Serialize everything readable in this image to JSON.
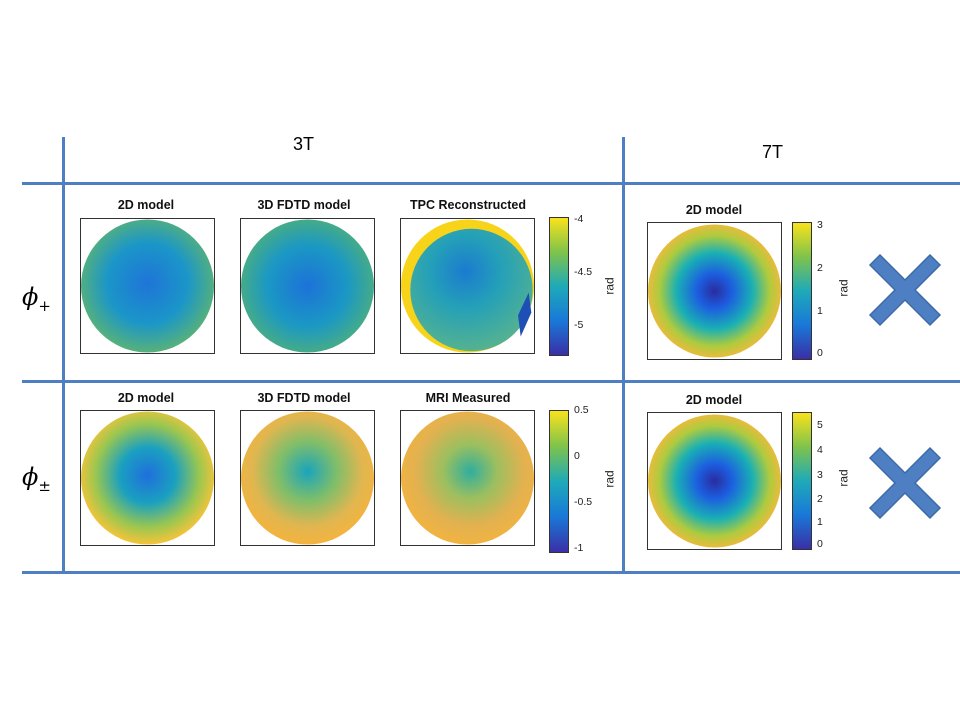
{
  "columns": {
    "col_3t": "3T",
    "col_7t": "7T"
  },
  "rows": [
    {
      "label_main": "ϕ",
      "label_sub": "+",
      "panels_3t": [
        {
          "title": "2D model"
        },
        {
          "title": "3D FDTD model"
        },
        {
          "title": "TPC Reconstructed"
        }
      ],
      "colorbar_3t": {
        "ticks": [
          "-4",
          "-4.5",
          "-5"
        ],
        "unit": "rad"
      },
      "panel_7t": {
        "title": "2D model"
      },
      "colorbar_7t": {
        "ticks": [
          "3",
          "2",
          "1",
          "0"
        ],
        "unit": "rad"
      }
    },
    {
      "label_main": "ϕ",
      "label_sub": "±",
      "panels_3t": [
        {
          "title": "2D model"
        },
        {
          "title": "3D FDTD model"
        },
        {
          "title": "MRI Measured"
        }
      ],
      "colorbar_3t": {
        "ticks": [
          "0.5",
          "0",
          "-0.5",
          "-1"
        ],
        "unit": "rad"
      },
      "panel_7t": {
        "title": "2D model"
      },
      "colorbar_7t": {
        "ticks": [
          "5",
          "4",
          "3",
          "2",
          "1",
          "0"
        ],
        "unit": "rad"
      }
    }
  ],
  "colors": {
    "grid_line": "#4f7fc3",
    "cross": "#4f7fc3"
  }
}
